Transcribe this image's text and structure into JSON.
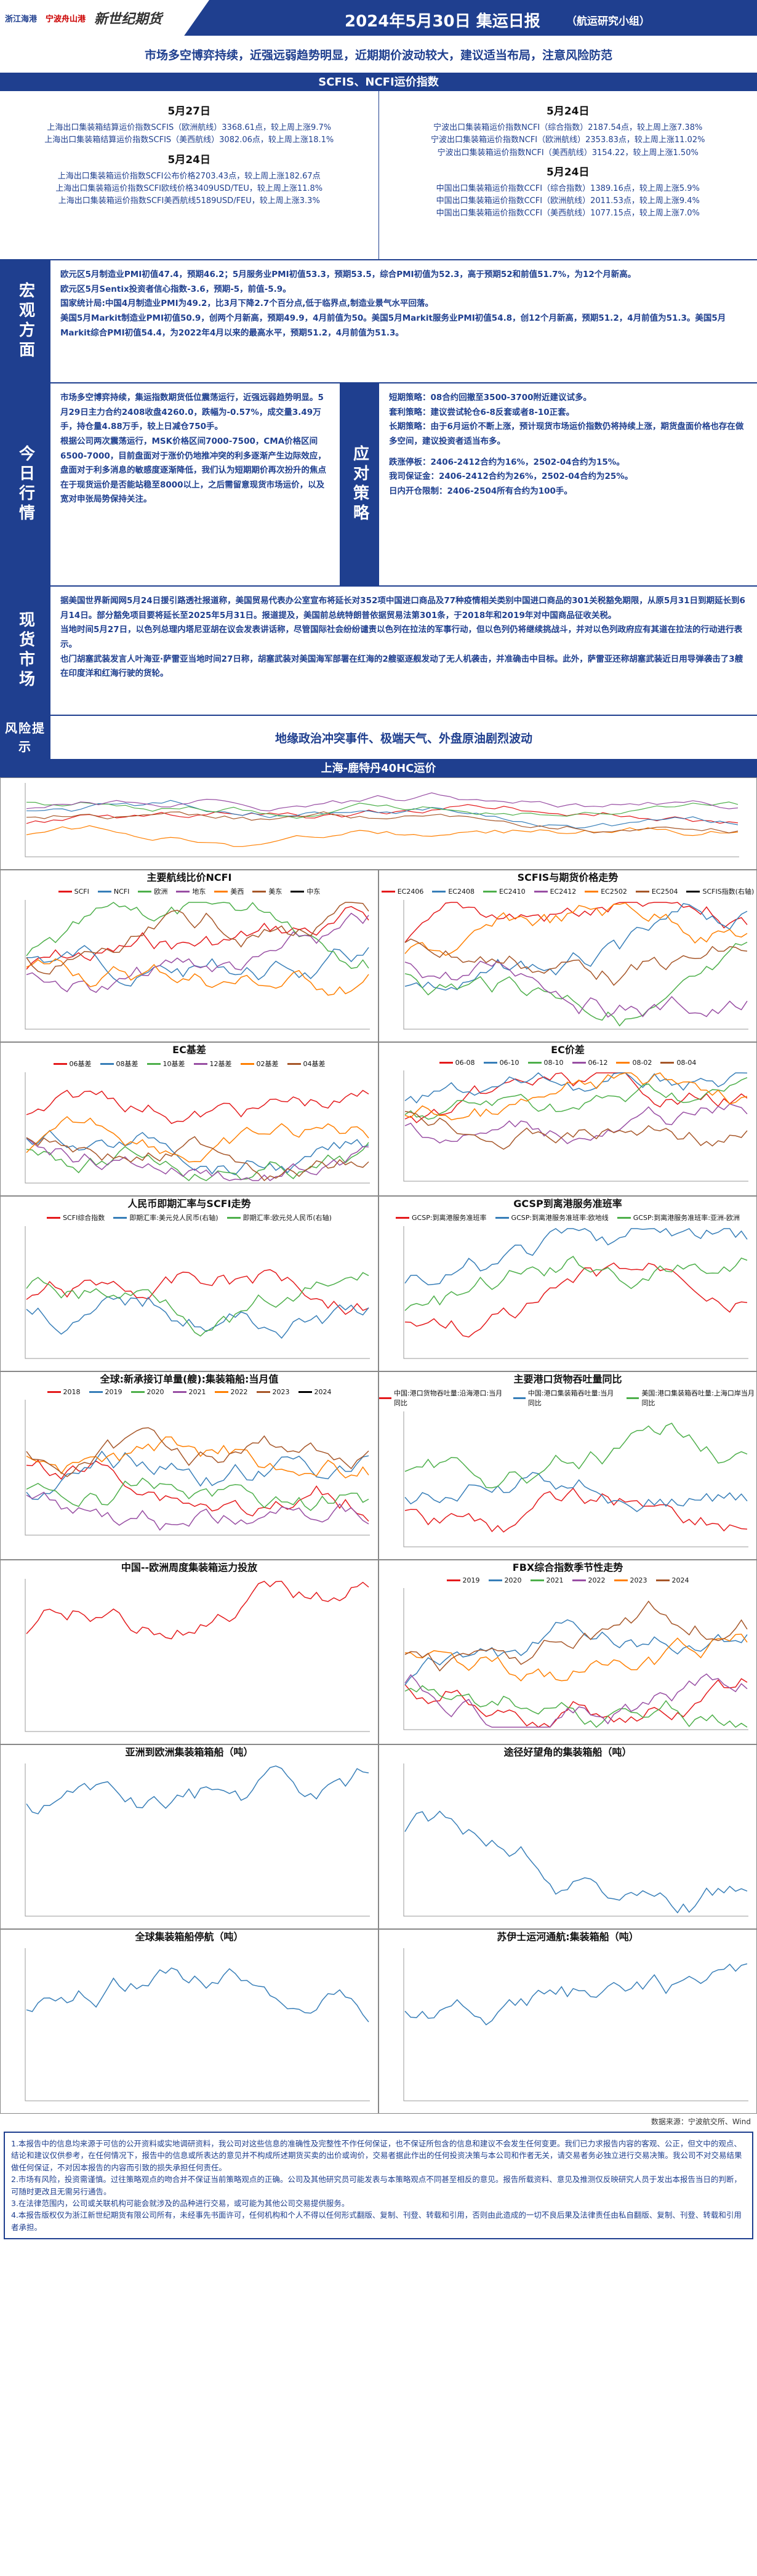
{
  "header": {
    "logo1": "浙江海港",
    "logo2": "宁波舟山港",
    "logo3": "新世纪期货",
    "title": "2024年5月30日 集运日报",
    "subtitle": "（航运研究小组）"
  },
  "headline": "市场多空博弈持续，近强远弱趋势明显，近期期价波动较大，建议适当布局，注意风险防范",
  "scfis_section": {
    "title": "SCFIS、NCFI运价指数",
    "left": {
      "date1": "5月27日",
      "lines1": [
        "上海出口集装箱结算运价指数SCFIS（欧洲航线）3368.61点，较上周上涨9.7%",
        "上海出口集装箱结算运价指数SCFIS（美西航线）3082.06点，较上周上涨18.1%"
      ],
      "date2": "5月24日",
      "lines2": [
        "上海出口集装箱运价指数SCFI公布价格2703.43点，较上周上涨182.67点",
        "上海出口集装箱运价指数SCFI欧线价格3409USD/TEU，较上周上涨11.8%",
        "上海出口集装箱运价指数SCFI美西航线5189USD/FEU，较上周上涨3.3%"
      ]
    },
    "right": {
      "date1": "5月24日",
      "lines1": [
        "宁波出口集装箱运价指数NCFI（综合指数）2187.54点，较上周上涨7.38%",
        "宁波出口集装箱运价指数NCFI（欧洲航线）2353.83点，较上周上涨11.02%",
        "宁波出口集装箱运价指数NCFI（美西航线）3154.22，较上周上涨1.50%"
      ],
      "date2": "5月24日",
      "lines2": [
        "中国出口集装箱运价指数CCFI（综合指数）1389.16点，较上周上涨5.9%",
        "中国出口集装箱运价指数CCFI（欧洲航线）2011.53点，较上周上涨9.4%",
        "中国出口集装箱运价指数CCFI（美西航线）1077.15点，较上周上涨7.0%"
      ]
    }
  },
  "macro": {
    "label": "宏观方面",
    "paragraphs": [
      "欧元区5月制造业PMI初值47.4，预期46.2；5月服务业PMI初值53.3，预期53.5，综合PMI初值为52.3，高于预期52和前值51.7%，为12个月新高。",
      "欧元区5月Sentix投资者信心指数-3.6，预期-5，前值-5.9。",
      "国家统计局:中国4月制造业PMI为49.2，比3月下降2.7个百分点,低于临界点,制造业景气水平回落。",
      "美国5月Markit制造业PMI初值50.9，创两个月新高，预期49.9，4月前值为50。美国5月Markit服务业PMI初值54.8，创12个月新高，预期51.2，4月前值为51.3。美国5月Markit综合PMI初值54.4，为2022年4月以来的最高水平，预期51.2，4月前值为51.3。"
    ]
  },
  "today": {
    "label": "今日行情",
    "text": "市场多空博弈持续，集运指数期货低位震荡运行，近强远弱趋势明显。5月29日主力合约2408收盘4260.0，跌幅为-0.57%，成交量3.49万手，持仓量4.88万手，较上日减仓750手。",
    "text2": "根据公司两次震荡运行，MSK价格区间7000-7500，CMA价格区间6500-7000，目前盘面对于涨价仍地推冲突的利多逐渐产生边际效应，盘面对于利多消息的敏感度逐渐降低，我们认为短期期价再次扮升的焦点在于现货运价是否能站稳至8000以上，之后需留意现货市场运价，以及宽对申张局势保持关注。",
    "strategy_label": "应对策略",
    "strategy": [
      "短期策略：08合约回撤至3500-3700附近建议试多。",
      "套利策略：建议尝试轮仓6-8反套或者8-10正套。",
      "长期策略：由于6月运价不断上涨，预计现货市场运价指数仍将持续上涨，期货盘面价格也存在做多空间，建议投资者适当布多。",
      "",
      "跌涨停板：2406-2412合约为16%，2502-04合约为15%。",
      "我司保证金：2406-2412合约为26%，2502-04合约为25%。",
      "日内开仓限制：2406-2504所有合约为100手。"
    ]
  },
  "spot": {
    "label": "现货市场",
    "paragraphs": [
      "据美国世界新闻网5月24日援引路透社报道称，美国贸易代表办公室宣布将延长对352项中国进口商品及77种疫情相关类别中国进口商品的301关税豁免期限，从原5月31日到期延长到6月14日。部分豁免项目要将延长至2025年5月31日。报道提及，美国前总统特朗普依据贸易法第301条，于2018年和2019年对中国商品征收关税。",
      "当地时间5月27日，以色列总理内塔尼亚胡在议会发表讲话称，尽管国际社会纷纷谴责以色列在拉法的军事行动，但以色列仍将继续挑战斗，并对以色列政府应有其道在拉法的行动进行表示。",
      "也门胡塞武装发言人叶海亚·萨雷亚当地时间27日称，胡塞武装对美国海军部署在红海的2艘驱逐舰发动了无人机袭击，并准确击中目标。此外，萨雷亚还称胡塞武装近日用导弹袭击了3艘在印度洋和红海行驶的货轮。"
    ]
  },
  "risk": {
    "label": "风险提示",
    "text": "地缘政治冲突事件、极端天气、外盘原油剧烈波动"
  },
  "top_chart": {
    "title": "上海-鹿特丹40HC运价"
  },
  "panels": {
    "p1": {
      "title": "主要航线比价NCFI",
      "legend": [
        "SCFI",
        "NCFI",
        "欧洲",
        "地东",
        "美西",
        "美东",
        "中东"
      ]
    },
    "p2": {
      "title": "SCFIS与期货价格走势",
      "legend": [
        "EC2406",
        "EC2408",
        "EC2410",
        "EC2412",
        "EC2502",
        "EC2504",
        "SCFIS指数(右轴)"
      ]
    },
    "p3": {
      "title": "EC基差",
      "legend": [
        "06基差",
        "08基差",
        "10基差",
        "12基差",
        "02基差",
        "04基差"
      ]
    },
    "p4": {
      "title": "EC价差",
      "legend": [
        "06-08",
        "06-10",
        "08-10",
        "06-12",
        "08-02",
        "08-04"
      ]
    },
    "p5": {
      "title": "人民币即期汇率与SCFI走势",
      "legend": [
        "SCFI综合指数",
        "即期汇率:美元兑人民币(右轴)",
        "即期汇率:欧元兑人民币(右轴)"
      ]
    },
    "p6": {
      "title": "GCSP到离港服务准班率",
      "legend": [
        "GCSP:到离港服务准班率",
        "GCSP:到离港服务准班率:欧地线",
        "GCSP:到离港服务准班率:亚洲-欧洲"
      ]
    },
    "p7": {
      "title": "全球:新承接订单量(艘):集装箱船:当月值",
      "legend": [
        "2018",
        "2019",
        "2020",
        "2021",
        "2022",
        "2023",
        "2024"
      ]
    },
    "p8": {
      "title": "主要港口货物吞吐量同比",
      "legend": [
        "中国:港口货物吞吐量:沿海港口:当月同比",
        "中国:港口集装箱吞吐量:当月同比",
        "美国:港口集装箱吞吐量:上海口岸当月同比"
      ]
    },
    "p9": {
      "title": "中国--欧洲周度集装箱运力投放"
    },
    "p10": {
      "title": "FBX综合指数季节性走势",
      "legend": [
        "2019",
        "2020",
        "2021",
        "2022",
        "2023",
        "2024"
      ]
    },
    "p11": {
      "title": "亚洲到欧洲集装箱箱船（吨）"
    },
    "p12": {
      "title": "途径好望角的集装箱船（吨）"
    },
    "p13": {
      "title": "全球集装箱船停航（吨）"
    },
    "p14": {
      "title": "苏伊士运河通航:集装箱船（吨）"
    }
  },
  "source": "数据来源：宁波航交所、Wind",
  "disclaimer": [
    "1.本报告中的信息均来源于可信的公开资料或实地调研资料，我公司对这些信息的准确性及完整性不作任何保证，也不保证所包含的信息和建议不会发生任何变更。我们已力求报告内容的客观、公正，但文中的观点、结论和建议仅供参考，在任何情况下，报告中的信息或所表达的意见并不构成所述期货买卖的出价或询价，交易者据此作出的任何投资决策与本公司和作者无关，请交易者务必独立进行交易决策。我公司不对交易结果做任何保证，不对因本报告的内容而引致的损失承担任何责任。",
    "2.市场有风险，投资需谨慎。过往策略观点的吻合并不保证当前策略观点的正确。公司及其他研究员可能发表与本策略观点不同甚至相反的意见。报告所载资料、意见及推测仅反映研究人员于发出本报告当日的判断，可随时更改且无需另行通告。",
    "3.在法律范围内，公司或关联机构可能会就涉及的品种进行交易，或可能为其他公司交易提供服务。",
    "4.本报告版权仅为浙江新世纪期货有限公司所有，未经事先书面许可，任何机构和个人不得以任何形式翻版、复制、刊登、转载和引用，否则由此造成的一切不良后果及法律责任由私自翻版、复制、刊登、转载和引用者承担。"
  ]
}
